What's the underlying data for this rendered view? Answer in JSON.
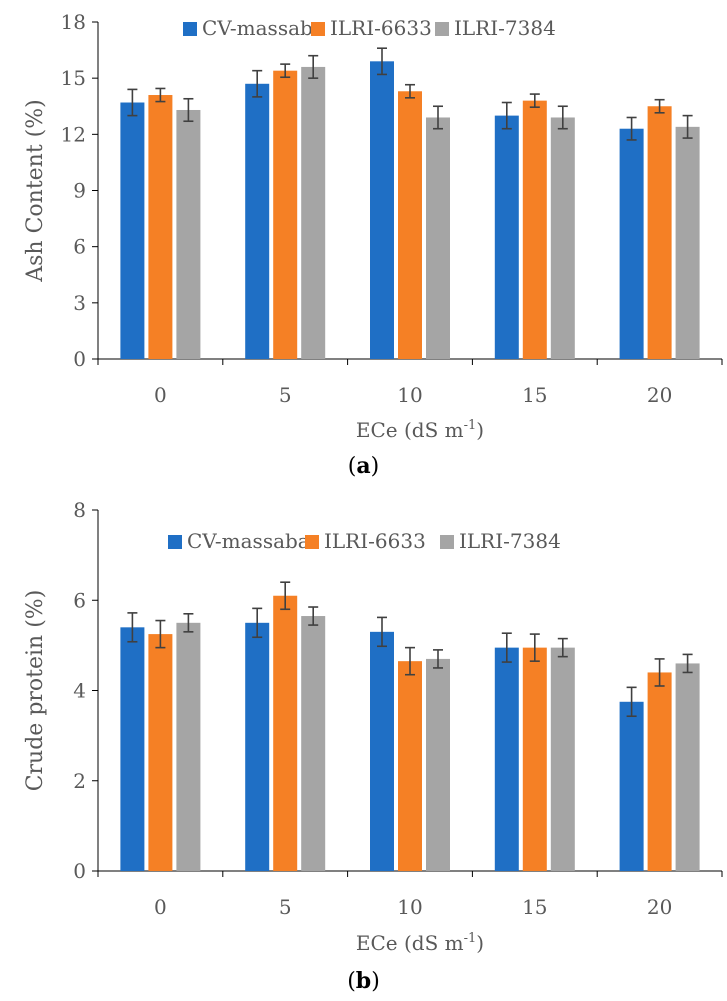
{
  "chart_data": [
    {
      "type": "bar",
      "panel_label": "a",
      "categories": [
        "0",
        "5",
        "10",
        "15",
        "20"
      ],
      "xlabel": "ECe (dS m",
      "xlabel_sup": "-1",
      "xlabel_end": ")",
      "ylabel": "Ash Content (%)",
      "ylim": [
        0,
        18
      ],
      "yticks": [
        "0",
        "3",
        "6",
        "9",
        "12",
        "15",
        "18"
      ],
      "legend_position": "top",
      "grid": false,
      "series": [
        {
          "name": "CV-massaba",
          "color": "#1f6fc5",
          "values": [
            13.7,
            14.7,
            15.9,
            13.0,
            12.3
          ],
          "errors": [
            0.7,
            0.7,
            0.7,
            0.7,
            0.6
          ]
        },
        {
          "name": "ILRI-6633",
          "color": "#f58025",
          "values": [
            14.1,
            15.4,
            14.3,
            13.8,
            13.5
          ],
          "errors": [
            0.35,
            0.35,
            0.35,
            0.35,
            0.35
          ]
        },
        {
          "name": "ILRI-7384",
          "color": "#a5a5a5",
          "values": [
            13.3,
            15.6,
            12.9,
            12.9,
            12.4
          ],
          "errors": [
            0.6,
            0.6,
            0.6,
            0.6,
            0.6
          ]
        }
      ]
    },
    {
      "type": "bar",
      "panel_label": "b",
      "categories": [
        "0",
        "5",
        "10",
        "15",
        "20"
      ],
      "xlabel": "ECe (dS m",
      "xlabel_sup": "-1",
      "xlabel_end": ")",
      "ylabel": "Crude protein (%)",
      "ylim": [
        0,
        8
      ],
      "yticks": [
        "0",
        "2",
        "4",
        "6",
        "8"
      ],
      "legend_position": "top",
      "grid": false,
      "series": [
        {
          "name": "CV-massaba",
          "color": "#1f6fc5",
          "values": [
            5.4,
            5.5,
            5.3,
            4.95,
            3.75
          ],
          "errors": [
            0.32,
            0.32,
            0.32,
            0.32,
            0.32
          ]
        },
        {
          "name": "ILRI-6633",
          "color": "#f58025",
          "values": [
            5.25,
            6.1,
            4.65,
            4.95,
            4.4
          ],
          "errors": [
            0.3,
            0.3,
            0.3,
            0.3,
            0.3
          ]
        },
        {
          "name": "ILRI-7384",
          "color": "#a5a5a5",
          "values": [
            5.5,
            5.65,
            4.7,
            4.95,
            4.6
          ],
          "errors": [
            0.2,
            0.2,
            0.2,
            0.2,
            0.2
          ]
        }
      ]
    }
  ]
}
